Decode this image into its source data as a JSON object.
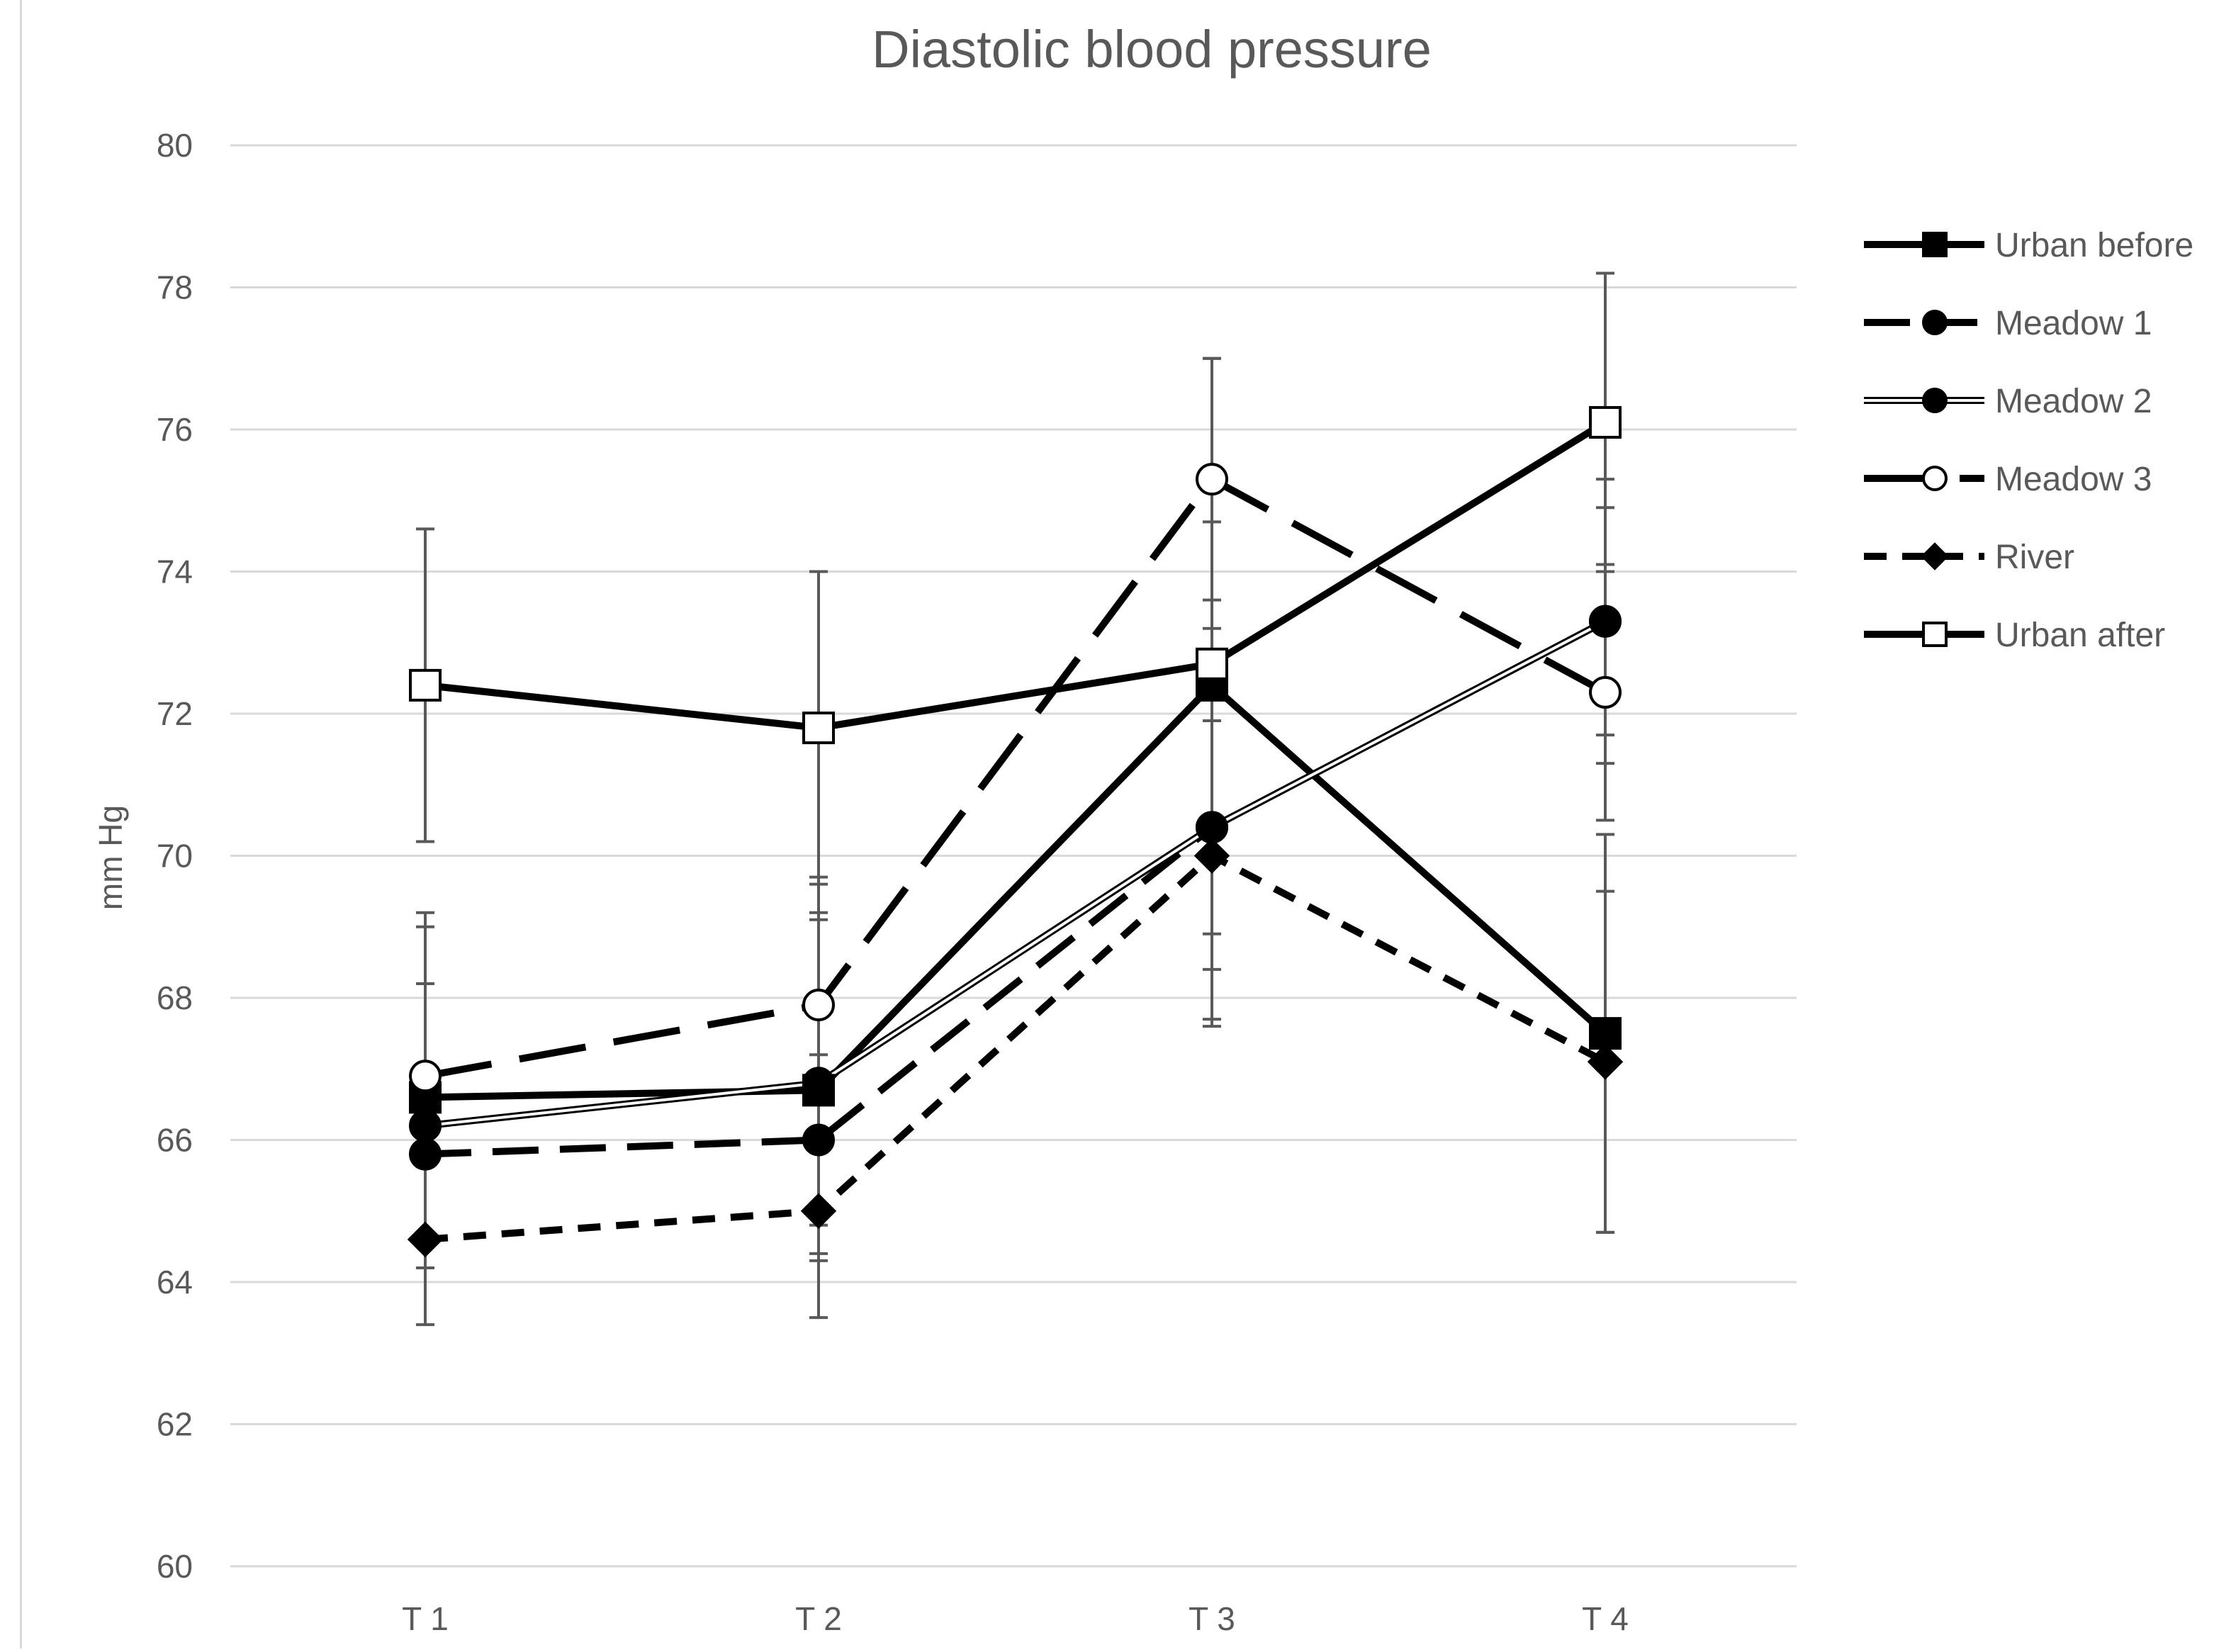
{
  "chart_data": {
    "type": "line",
    "title": "Diastolic blood pressure",
    "xlabel": "",
    "ylabel": "mm Hg",
    "ylim": [
      60,
      80
    ],
    "ytick_step": 2,
    "grid": true,
    "legend_position": "right",
    "categories": [
      "T 1",
      "T 2",
      "T 3",
      "T 4"
    ],
    "series": [
      {
        "name": "Urban before",
        "values": [
          66.6,
          66.7,
          72.4,
          67.5
        ],
        "errors": [
          2.4,
          2.4,
          2.3,
          2.8
        ],
        "line_style": "solid",
        "marker": "square",
        "marker_fill": "black"
      },
      {
        "name": "Meadow 1",
        "values": [
          65.8,
          66.0,
          70.4,
          73.3
        ],
        "errors": [
          1.2,
          1.2,
          1.5,
          1.6
        ],
        "line_style": "dash",
        "marker": "circle",
        "marker_fill": "black"
      },
      {
        "name": "Meadow 2",
        "values": [
          66.2,
          66.8,
          70.4,
          73.3
        ],
        "errors": [
          2.0,
          2.4,
          2.8,
          2.0
        ],
        "line_style": "double",
        "marker": "circle",
        "marker_fill": "black"
      },
      {
        "name": "Meadow 3",
        "values": [
          66.9,
          67.9,
          75.3,
          72.3
        ],
        "errors": [
          2.3,
          1.8,
          1.7,
          1.8
        ],
        "line_style": "longdash",
        "marker": "circle",
        "marker_fill": "white"
      },
      {
        "name": "River",
        "values": [
          64.6,
          65.0,
          70.0,
          67.1
        ],
        "errors": [
          1.2,
          1.5,
          2.3,
          2.4
        ],
        "line_style": "shortdash",
        "marker": "diamond",
        "marker_fill": "black"
      },
      {
        "name": "Urban after",
        "values": [
          72.4,
          71.8,
          72.7,
          76.1
        ],
        "errors": [
          2.2,
          2.2,
          4.3,
          2.1
        ],
        "line_style": "solid",
        "marker": "square",
        "marker_fill": "white"
      }
    ]
  },
  "colors": {
    "series": "#000000",
    "grid": "#d9d9d9",
    "error_bar": "#595959",
    "text": "#595959"
  }
}
